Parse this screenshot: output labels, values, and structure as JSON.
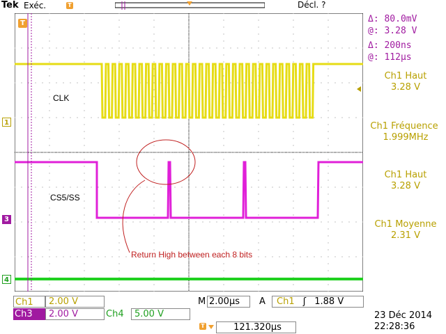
{
  "topbar": {
    "brand": "Tek",
    "state": "Exéc.",
    "trigger_status": "Décl. ?"
  },
  "cursor_readout": {
    "delta_v": "Δ:   80.0mV",
    "at_v": "@:   3.28 V",
    "delta_t": "Δ:    200ns",
    "at_t": "@:    112µs"
  },
  "measurements": [
    {
      "label": "Ch1 Haut",
      "value": "3.28 V"
    },
    {
      "label": "Ch1 Fréquence",
      "value": "1.999MHz"
    },
    {
      "label": "Ch1 Haut",
      "value": "3.28 V"
    },
    {
      "label": "Ch1 Moyenne",
      "value": "2.31 V"
    }
  ],
  "annotations": {
    "clk": "CLK",
    "cs": "CS5/SS",
    "note": "Return High between each 8 bits"
  },
  "channel_markers": {
    "ch1": "1",
    "ch3": "3",
    "ch4": "4",
    "trigger": "T"
  },
  "bottom": {
    "ch1_label": "Ch1",
    "ch1_scale": "2.00 V",
    "ch3_label": "Ch3",
    "ch3_scale": "2.00 V",
    "ch4_label": "Ch4",
    "ch4_scale": "5.00 V",
    "m_label": "M",
    "m_scale": "2.00µs",
    "trig_mode": "A",
    "trig_source": "Ch1",
    "trig_slope": "ʃ",
    "trig_level": "1.88 V",
    "position": "121.320µs",
    "date": "23 Déc  2014",
    "time": "22:28:36"
  },
  "colors": {
    "ch1": "#e6dc14",
    "ch3": "#e020d8",
    "ch4": "#20d020",
    "grid": "#000000",
    "accent": "#f0a030",
    "annotation": "#c02020"
  }
}
